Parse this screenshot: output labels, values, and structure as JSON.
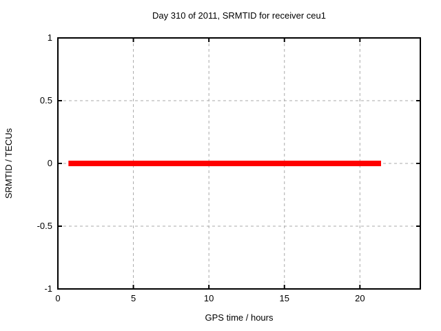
{
  "figure": {
    "background": "#ffffff",
    "text_color": "#000000"
  },
  "chart_data": {
    "type": "line",
    "title": "Day 310 of 2011, SRMTID for receiver ceu1",
    "xlabel": "GPS time / hours",
    "ylabel": "SRMTID / TECUs",
    "xlim": [
      0,
      24
    ],
    "ylim": [
      -1,
      1
    ],
    "xticks": [
      0,
      5,
      10,
      15,
      20
    ],
    "yticks": [
      1,
      0.5,
      0,
      -0.5,
      -1
    ],
    "grid": true,
    "grid_color": "#a8a8a8",
    "grid_style": "dashed",
    "axis_color": "#000000",
    "legend_position": "none",
    "series": [
      {
        "name": "SRMTID",
        "color": "#ff0000",
        "linewidth": 8,
        "x": [
          0.7,
          21.4
        ],
        "y": [
          0,
          0
        ]
      }
    ]
  }
}
